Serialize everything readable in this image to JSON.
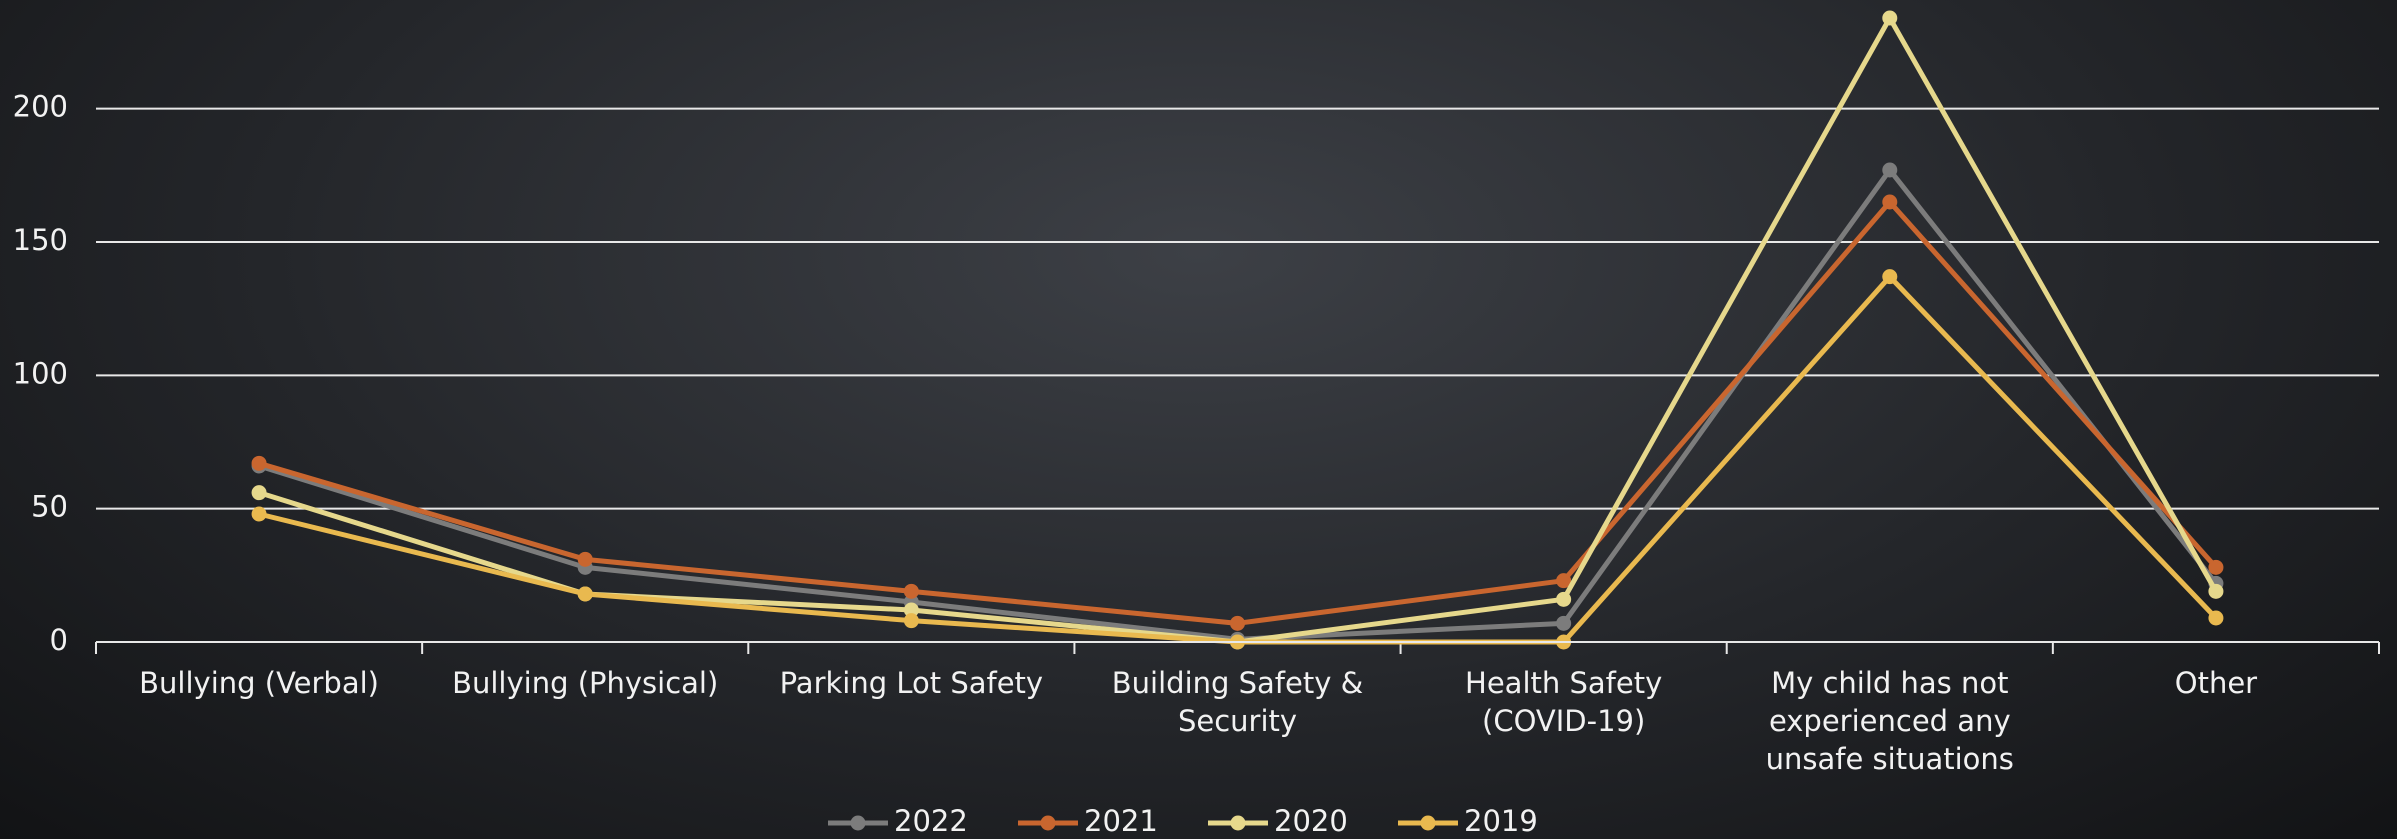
{
  "chart_data": {
    "type": "line",
    "categories": [
      "Bullying (Verbal)",
      "Bullying (Physical)",
      "Parking Lot Safety",
      "Building Safety & Security",
      "Health Safety (COVID-19)",
      "My child has not experienced any unsafe situations",
      "Other"
    ],
    "series": [
      {
        "name": "2022",
        "color": "#7c7c7c",
        "values": [
          66,
          28,
          15,
          1,
          7,
          177,
          22
        ]
      },
      {
        "name": "2021",
        "color": "#c9662f",
        "values": [
          67,
          31,
          19,
          7,
          23,
          165,
          28
        ]
      },
      {
        "name": "2020",
        "color": "#e6d88c",
        "values": [
          56,
          18,
          12,
          0,
          16,
          234,
          19
        ]
      },
      {
        "name": "2019",
        "color": "#e9b94f",
        "values": [
          48,
          18,
          8,
          0,
          0,
          137,
          9
        ]
      }
    ],
    "ylim": [
      0,
      240
    ],
    "yticks": [
      0,
      50,
      100,
      150,
      200
    ],
    "grid": true,
    "legend": "bottom"
  }
}
